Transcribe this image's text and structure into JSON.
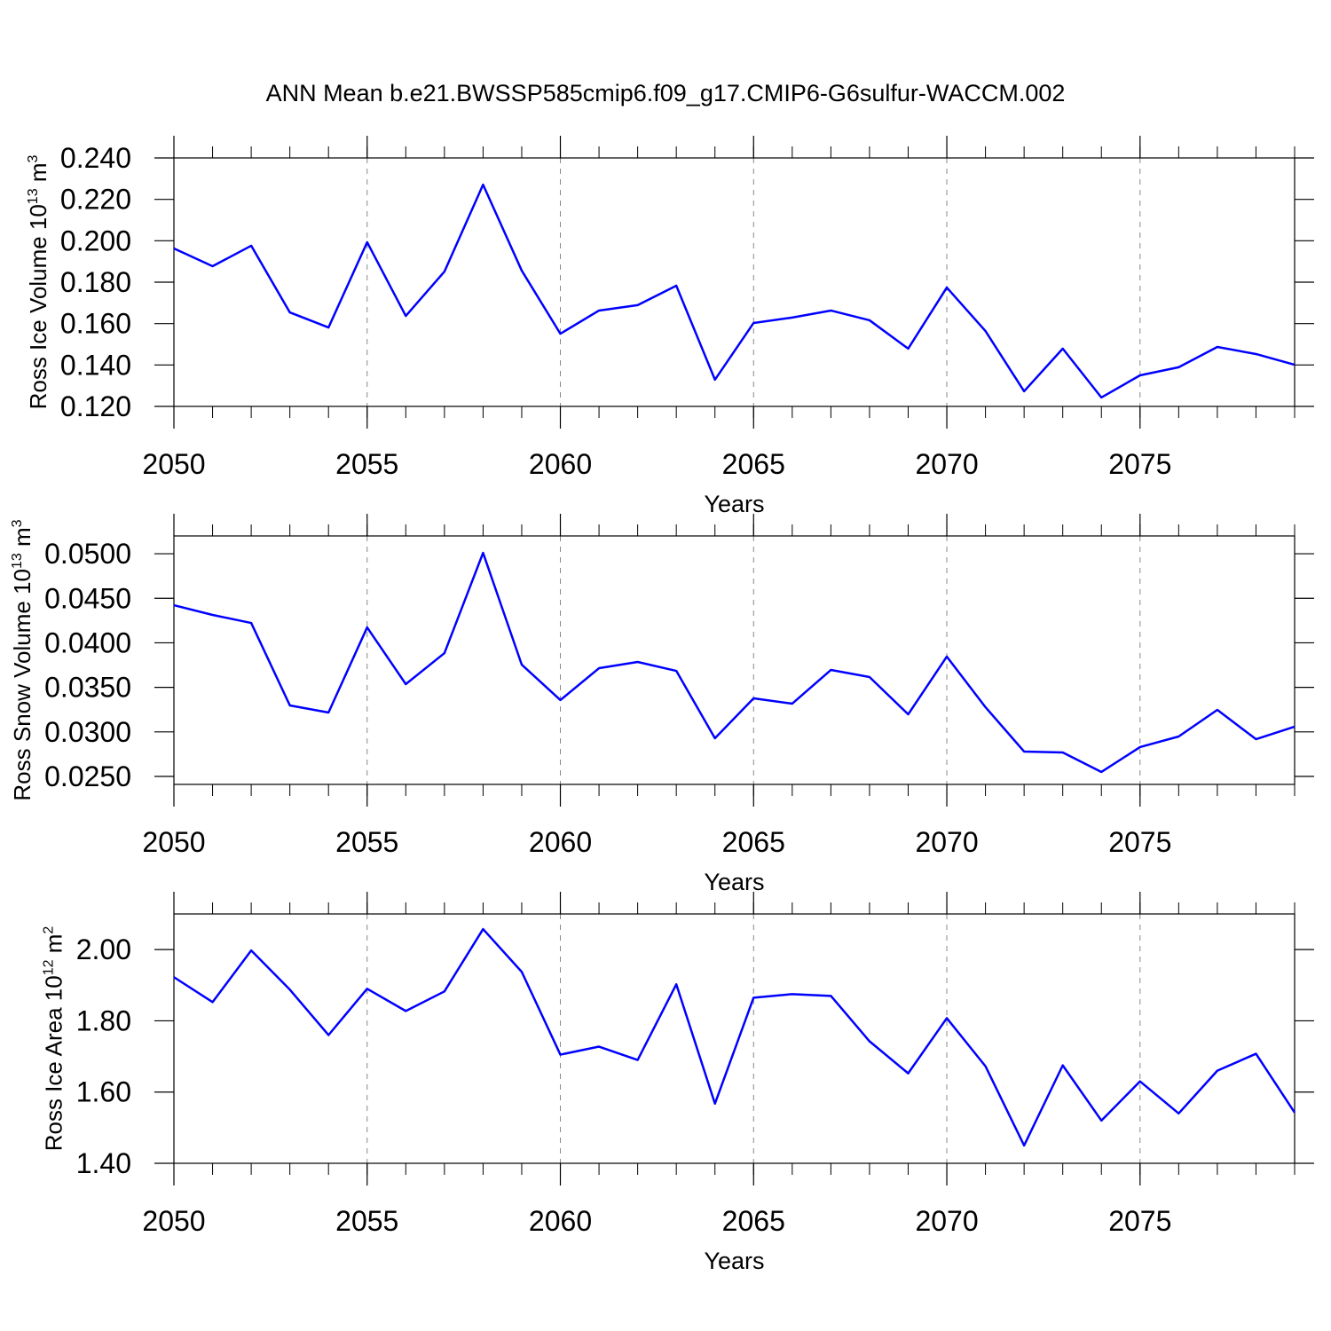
{
  "chart_data": [
    {
      "type": "line",
      "title": "ANN Mean b.e21.BWSSP585cmip6.f09_g17.CMIP6-G6sulfur-WACCM.002",
      "x": [
        2050,
        2051,
        2052,
        2053,
        2054,
        2055,
        2056,
        2057,
        2058,
        2059,
        2060,
        2061,
        2062,
        2063,
        2064,
        2065,
        2066,
        2067,
        2068,
        2069,
        2070,
        2071,
        2072,
        2073,
        2074,
        2075,
        2076,
        2077,
        2078,
        2079
      ],
      "values": [
        0.1963,
        0.1877,
        0.1976,
        0.1654,
        0.1581,
        0.1993,
        0.1637,
        0.1851,
        0.2271,
        0.1856,
        0.1551,
        0.1663,
        0.1689,
        0.1783,
        0.1329,
        0.1603,
        0.1629,
        0.1663,
        0.1616,
        0.1479,
        0.1774,
        0.1564,
        0.1273,
        0.1479,
        0.1243,
        0.135,
        0.1389,
        0.1487,
        0.1453,
        0.1401
      ],
      "color": "#0000ff",
      "xlim": [
        2050,
        2079
      ],
      "xticks": [
        2050,
        2055,
        2060,
        2065,
        2070,
        2075
      ],
      "ylim": [
        0.12,
        0.24
      ],
      "yticks": [
        {
          "value": 0.12,
          "label": "0.120"
        },
        {
          "value": 0.14,
          "label": "0.140"
        },
        {
          "value": 0.16,
          "label": "0.160"
        },
        {
          "value": 0.18,
          "label": "0.180"
        },
        {
          "value": 0.2,
          "label": "0.200"
        },
        {
          "value": 0.22,
          "label": "0.220"
        },
        {
          "value": 0.24,
          "label": "0.240"
        }
      ],
      "xlabel": "Years",
      "ylabel": [
        {
          "text": "Ross Ice Volume 10"
        },
        {
          "text": "13",
          "sup": true
        },
        {
          "text": " m"
        },
        {
          "text": "3",
          "sup": true
        }
      ],
      "grid": "x"
    },
    {
      "type": "line",
      "x": [
        2050,
        2051,
        2052,
        2053,
        2054,
        2055,
        2056,
        2057,
        2058,
        2059,
        2060,
        2061,
        2062,
        2063,
        2064,
        2065,
        2066,
        2067,
        2068,
        2069,
        2070,
        2071,
        2072,
        2073,
        2074,
        2075,
        2076,
        2077,
        2078,
        2079
      ],
      "values": [
        0.04422,
        0.04313,
        0.04223,
        0.03297,
        0.03217,
        0.04173,
        0.03536,
        0.03884,
        0.0501,
        0.03755,
        0.03357,
        0.03715,
        0.03785,
        0.03685,
        0.02928,
        0.03377,
        0.03317,
        0.03695,
        0.03616,
        0.03197,
        0.03845,
        0.03277,
        0.02779,
        0.02769,
        0.0255,
        0.02829,
        0.02948,
        0.03247,
        0.02918,
        0.03058
      ],
      "color": "#0000ff",
      "xlim": [
        2050,
        2079
      ],
      "xticks": [
        2050,
        2055,
        2060,
        2065,
        2070,
        2075
      ],
      "ylim": [
        0.0241,
        0.052
      ],
      "yticks": [
        {
          "value": 0.025,
          "label": "0.0250"
        },
        {
          "value": 0.03,
          "label": "0.0300"
        },
        {
          "value": 0.035,
          "label": "0.0350"
        },
        {
          "value": 0.04,
          "label": "0.0400"
        },
        {
          "value": 0.045,
          "label": "0.0450"
        },
        {
          "value": 0.05,
          "label": "0.0500"
        }
      ],
      "xlabel": "Years",
      "ylabel": [
        {
          "text": "Ross Snow Volume 10"
        },
        {
          "text": "13",
          "sup": true
        },
        {
          "text": " m"
        },
        {
          "text": "3",
          "sup": true
        }
      ],
      "grid": "x"
    },
    {
      "type": "line",
      "x": [
        2050,
        2051,
        2052,
        2053,
        2054,
        2055,
        2056,
        2057,
        2058,
        2059,
        2060,
        2061,
        2062,
        2063,
        2064,
        2065,
        2066,
        2067,
        2068,
        2069,
        2070,
        2071,
        2072,
        2073,
        2074,
        2075,
        2076,
        2077,
        2078,
        2079
      ],
      "values": [
        1.9225,
        1.8525,
        1.9975,
        1.8875,
        1.76,
        1.89,
        1.8275,
        1.8825,
        2.0575,
        1.9375,
        1.705,
        1.7275,
        1.69,
        1.9025,
        1.5675,
        1.865,
        1.875,
        1.87,
        1.7425,
        1.6525,
        1.8075,
        1.6725,
        1.45,
        1.675,
        1.52,
        1.63,
        1.54,
        1.66,
        1.7075,
        1.5425
      ],
      "color": "#0000ff",
      "xlim": [
        2050,
        2079
      ],
      "xticks": [
        2050,
        2055,
        2060,
        2065,
        2070,
        2075
      ],
      "ylim": [
        1.4,
        2.1
      ],
      "yticks": [
        {
          "value": 1.4,
          "label": "1.40"
        },
        {
          "value": 1.6,
          "label": "1.60"
        },
        {
          "value": 1.8,
          "label": "1.80"
        },
        {
          "value": 2.0,
          "label": "2.00"
        }
      ],
      "xlabel": "Years",
      "ylabel": [
        {
          "text": "Ross Ice Area 10"
        },
        {
          "text": "12",
          "sup": true
        },
        {
          "text": " m"
        },
        {
          "text": "2",
          "sup": true
        }
      ],
      "grid": "x"
    }
  ]
}
